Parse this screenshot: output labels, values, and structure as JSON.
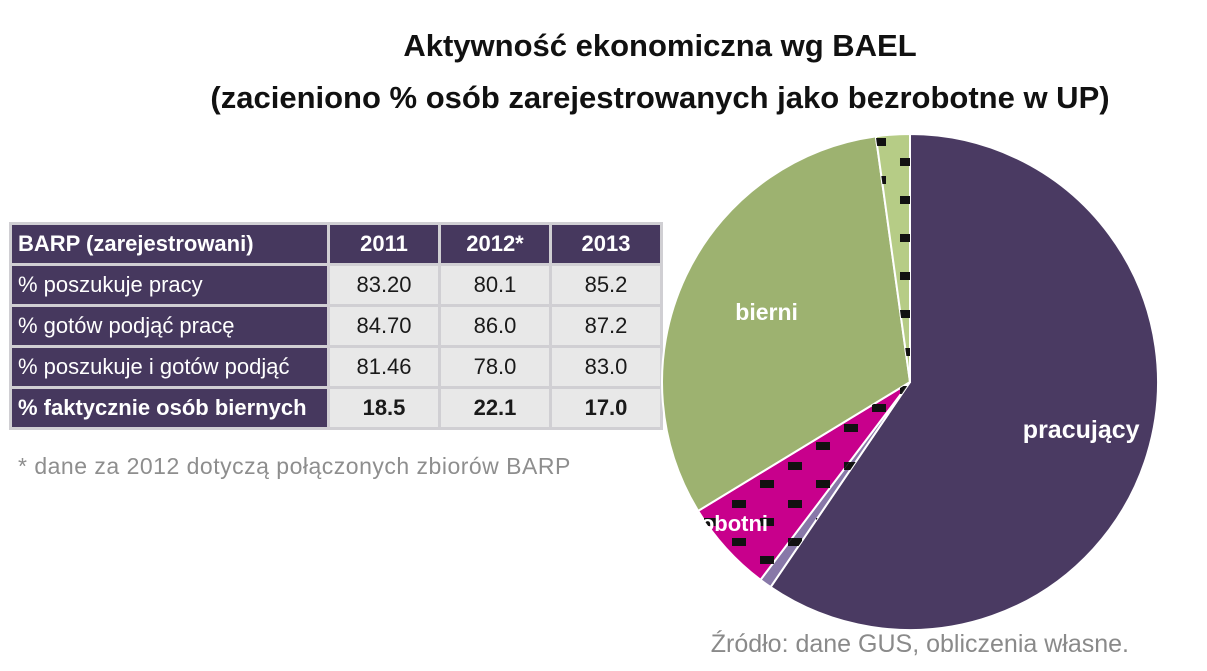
{
  "title": {
    "line1": "Aktywność ekonomiczna wg BAEL",
    "line2": "(zacieniono % osób zarejestrowanych jako bezrobotne w UP)"
  },
  "table": {
    "header": [
      "BARP (zarejestrowani)",
      "2011",
      "2012*",
      "2013"
    ],
    "rows": [
      {
        "label": "% poszukuje pracy",
        "values": [
          "83.20",
          "80.1",
          "85.2"
        ]
      },
      {
        "label": "% gotów podjąć pracę",
        "values": [
          "84.70",
          "86.0",
          "87.2"
        ]
      },
      {
        "label": "% poszukuje i gotów podjąć",
        "values": [
          "81.46",
          "78.0",
          "83.0"
        ]
      },
      {
        "label": "% faktycznie osób biernych",
        "values": [
          "18.5",
          "22.1",
          "17.0"
        ]
      }
    ]
  },
  "footnote": "* dane za 2012 dotyczą połączonych zbiorów BARP",
  "source": "Źródło: dane GUS, obliczenia własne.",
  "chart_data": {
    "type": "pie",
    "title": "Aktywność ekonomiczna wg BAEL",
    "subtitle": "(zacieniono % osób zarejestrowanych jako bezrobotne w UP)",
    "slices": [
      {
        "label": "pracujący",
        "value": 59.5,
        "color": "#4a3a62"
      },
      {
        "label": "",
        "value": 0.8,
        "color": "#8878a8"
      },
      {
        "label": "bezrobotni",
        "value": 6.0,
        "color": "#c8008c"
      },
      {
        "label": "bierni",
        "value": 31.5,
        "color": "#9db270"
      },
      {
        "label": "",
        "value": 2.2,
        "color": "#b6cc86"
      }
    ],
    "legend": "none"
  }
}
